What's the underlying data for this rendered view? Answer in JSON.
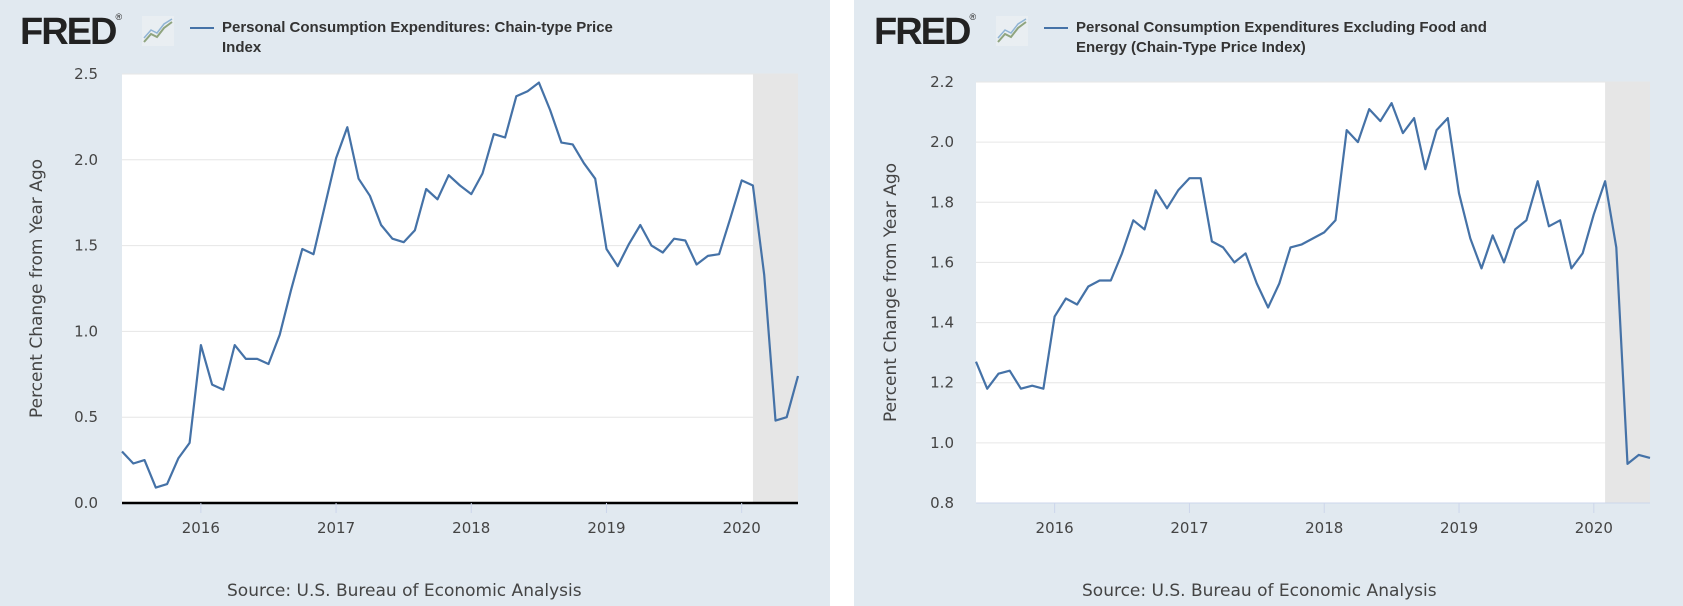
{
  "panels": [
    {
      "logo": {
        "text": "FRED",
        "registered": "®",
        "icon": "line-graph-icon"
      },
      "legend_label": "Personal Consumption Expenditures: Chain-type Price Index",
      "source": "Source: U.S. Bureau of Economic Analysis"
    },
    {
      "logo": {
        "text": "FRED",
        "registered": "®",
        "icon": "line-graph-icon"
      },
      "legend_label": "Personal Consumption Expenditures Excluding Food and Energy (Chain-Type Price Index)",
      "source": "Source: U.S. Bureau of Economic Analysis"
    }
  ],
  "colors": {
    "background": "#e1e9f0",
    "plot_background": "#ffffff",
    "line": "#4572a7",
    "recession": "#e6e6e6",
    "grid": "#e6e6e6"
  },
  "chart_data": [
    {
      "type": "line",
      "title": "Personal Consumption Expenditures: Chain-type Price Index",
      "ylabel": "Percent Change from Year Ago",
      "xlabel": "",
      "ylim": [
        0,
        2.5
      ],
      "xlim": [
        "2015-06",
        "2020-06"
      ],
      "yticks": [
        "0.0",
        "0.5",
        "1.0",
        "1.5",
        "2.0",
        "2.5"
      ],
      "xticks": [
        "2016",
        "2017",
        "2018",
        "2019",
        "2020"
      ],
      "grid": true,
      "legend": "top",
      "recession_band": {
        "start": "2020-02",
        "end": "2020-06"
      },
      "series": [
        {
          "name": "Personal Consumption Expenditures: Chain-type Price Index",
          "x": [
            "2015-06",
            "2015-07",
            "2015-08",
            "2015-09",
            "2015-10",
            "2015-11",
            "2015-12",
            "2016-01",
            "2016-02",
            "2016-03",
            "2016-04",
            "2016-05",
            "2016-06",
            "2016-07",
            "2016-08",
            "2016-09",
            "2016-10",
            "2016-11",
            "2016-12",
            "2017-01",
            "2017-02",
            "2017-03",
            "2017-04",
            "2017-05",
            "2017-06",
            "2017-07",
            "2017-08",
            "2017-09",
            "2017-10",
            "2017-11",
            "2017-12",
            "2018-01",
            "2018-02",
            "2018-03",
            "2018-04",
            "2018-05",
            "2018-06",
            "2018-07",
            "2018-08",
            "2018-09",
            "2018-10",
            "2018-11",
            "2018-12",
            "2019-01",
            "2019-02",
            "2019-03",
            "2019-04",
            "2019-05",
            "2019-06",
            "2019-07",
            "2019-08",
            "2019-09",
            "2019-10",
            "2019-11",
            "2019-12",
            "2020-01",
            "2020-02",
            "2020-03",
            "2020-04",
            "2020-05",
            "2020-06"
          ],
          "values": [
            0.3,
            0.23,
            0.25,
            0.09,
            0.11,
            0.26,
            0.35,
            0.92,
            0.69,
            0.66,
            0.92,
            0.84,
            0.84,
            0.81,
            0.98,
            1.24,
            1.48,
            1.45,
            1.73,
            2.01,
            2.19,
            1.89,
            1.79,
            1.62,
            1.54,
            1.52,
            1.59,
            1.83,
            1.77,
            1.91,
            1.85,
            1.8,
            1.92,
            2.15,
            2.13,
            2.37,
            2.4,
            2.45,
            2.29,
            2.1,
            2.09,
            1.98,
            1.89,
            1.48,
            1.38,
            1.51,
            1.62,
            1.5,
            1.46,
            1.54,
            1.53,
            1.39,
            1.44,
            1.45,
            1.66,
            1.88,
            1.85,
            1.33,
            0.48,
            0.5,
            0.74
          ]
        }
      ]
    },
    {
      "type": "line",
      "title": "Personal Consumption Expenditures Excluding Food and Energy (Chain-Type Price Index)",
      "ylabel": "Percent Change from Year Ago",
      "xlabel": "",
      "ylim": [
        0.8,
        2.2
      ],
      "xlim": [
        "2015-06",
        "2020-06"
      ],
      "yticks": [
        "0.8",
        "1.0",
        "1.2",
        "1.4",
        "1.6",
        "1.8",
        "2.0",
        "2.2"
      ],
      "xticks": [
        "2016",
        "2017",
        "2018",
        "2019",
        "2020"
      ],
      "grid": true,
      "legend": "top",
      "recession_band": {
        "start": "2020-02",
        "end": "2020-06"
      },
      "series": [
        {
          "name": "Personal Consumption Expenditures Excluding Food and Energy (Chain-Type Price Index)",
          "x": [
            "2015-06",
            "2015-07",
            "2015-08",
            "2015-09",
            "2015-10",
            "2015-11",
            "2015-12",
            "2016-01",
            "2016-02",
            "2016-03",
            "2016-04",
            "2016-05",
            "2016-06",
            "2016-07",
            "2016-08",
            "2016-09",
            "2016-10",
            "2016-11",
            "2016-12",
            "2017-01",
            "2017-02",
            "2017-03",
            "2017-04",
            "2017-05",
            "2017-06",
            "2017-07",
            "2017-08",
            "2017-09",
            "2017-10",
            "2017-11",
            "2017-12",
            "2018-01",
            "2018-02",
            "2018-03",
            "2018-04",
            "2018-05",
            "2018-06",
            "2018-07",
            "2018-08",
            "2018-09",
            "2018-10",
            "2018-11",
            "2018-12",
            "2019-01",
            "2019-02",
            "2019-03",
            "2019-04",
            "2019-05",
            "2019-06",
            "2019-07",
            "2019-08",
            "2019-09",
            "2019-10",
            "2019-11",
            "2019-12",
            "2020-01",
            "2020-02",
            "2020-03",
            "2020-04",
            "2020-05",
            "2020-06"
          ],
          "values": [
            1.27,
            1.18,
            1.23,
            1.24,
            1.18,
            1.19,
            1.18,
            1.42,
            1.48,
            1.46,
            1.52,
            1.54,
            1.54,
            1.63,
            1.74,
            1.71,
            1.84,
            1.78,
            1.84,
            1.88,
            1.88,
            1.67,
            1.65,
            1.6,
            1.63,
            1.53,
            1.45,
            1.53,
            1.65,
            1.66,
            1.68,
            1.7,
            1.74,
            2.04,
            2.0,
            2.11,
            2.07,
            2.13,
            2.03,
            2.08,
            1.91,
            2.04,
            2.08,
            1.83,
            1.68,
            1.58,
            1.69,
            1.6,
            1.71,
            1.74,
            1.87,
            1.72,
            1.74,
            1.58,
            1.63,
            1.76,
            1.87,
            1.65,
            0.93,
            0.96,
            0.95
          ]
        }
      ]
    }
  ]
}
